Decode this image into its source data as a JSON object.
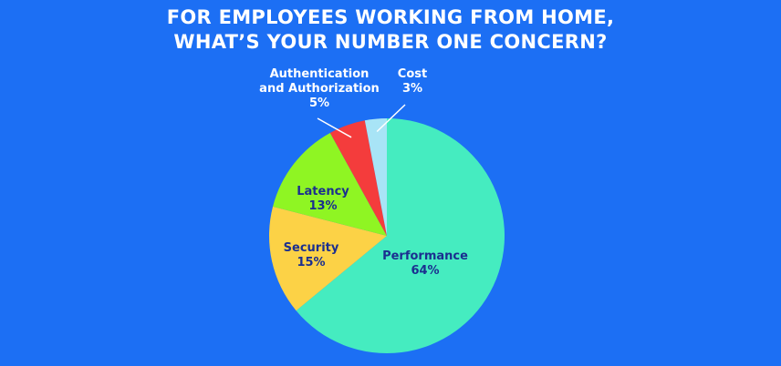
{
  "chart_data": {
    "type": "pie",
    "title_lines": [
      "FOR EMPLOYEES WORKING FROM HOME,",
      "WHAT’S YOUR NUMBER ONE CONCERN?"
    ],
    "slices": [
      {
        "label": "Performance",
        "value": 64,
        "value_label": "64%",
        "color": "#45ecc0",
        "label_color": "#1b2f8f"
      },
      {
        "label": "Security",
        "value": 15,
        "value_label": "15%",
        "color": "#fcd246",
        "label_color": "#1b2f8f"
      },
      {
        "label": "Latency",
        "value": 13,
        "value_label": "13%",
        "color": "#8ff523",
        "label_color": "#1b2f8f"
      },
      {
        "label": "Authentication\nand Authorization",
        "value": 5,
        "value_label": "5%",
        "color": "#f43c3c",
        "label_color": "#ffffff"
      },
      {
        "label": "Cost",
        "value": 3,
        "value_label": "3%",
        "color": "#a8e4f6",
        "label_color": "#ffffff"
      }
    ],
    "start_angle": "top",
    "direction": "clockwise",
    "background": "#1c6ff4"
  }
}
